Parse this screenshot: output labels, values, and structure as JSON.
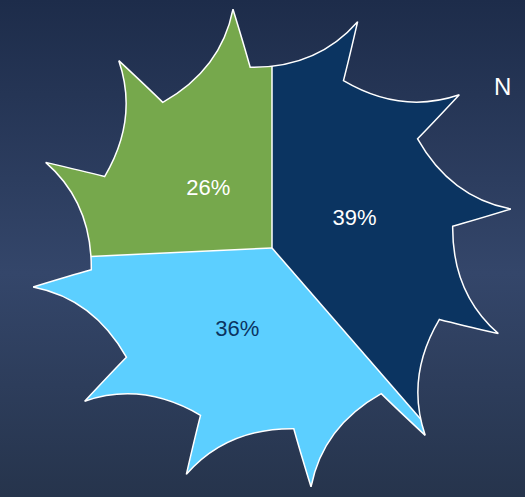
{
  "chart_data": {
    "type": "pie",
    "values": [
      39,
      36,
      26
    ],
    "value_labels": [
      "39%",
      "36%",
      "26%"
    ],
    "colors": [
      "#0b3461",
      "#5ccfff",
      "#76a84c"
    ],
    "data_labels": true,
    "annotations": [
      "N"
    ]
  }
}
